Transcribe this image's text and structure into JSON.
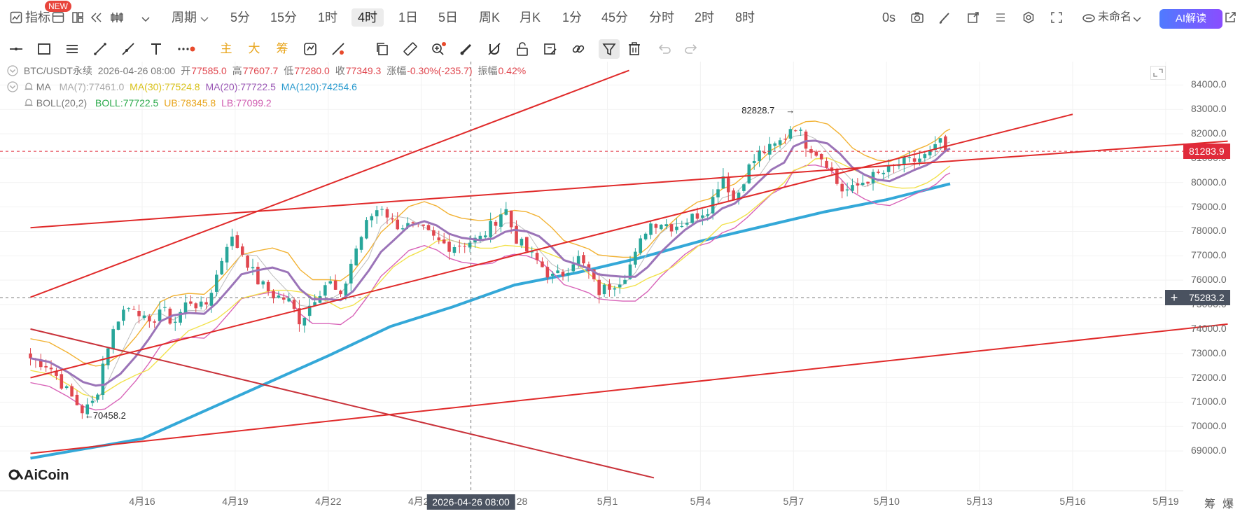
{
  "topbar": {
    "indicator_label": "指标",
    "new_badge": "NEW",
    "period_label": "周期",
    "intervals": [
      "5分",
      "15分",
      "1时",
      "4时",
      "1日",
      "5日",
      "周K",
      "月K",
      "1分",
      "45分",
      "分时",
      "2时",
      "8时"
    ],
    "active_interval": "4时",
    "countdown": "0s",
    "layout_name": "未命名",
    "ai_button": "AI解读"
  },
  "toolbar": {
    "main_label": "主",
    "big_label": "大",
    "chip_label": "筹"
  },
  "info": {
    "symbol": "BTC/USDT永续",
    "datetime": "2026-04-26 08:00",
    "open_label": "开",
    "open": "77585.0",
    "high_label": "高",
    "high": "77607.7",
    "low_label": "低",
    "low": "77280.0",
    "close_label": "收",
    "close": "77349.3",
    "change_label": "涨幅",
    "change": "-0.30%(-235.7)",
    "amp_label": "振幅",
    "amp": "0.42%",
    "ma_label": "MA",
    "ma7": "MA(7):77461.0",
    "ma30": "MA(30):77524.8",
    "ma20": "MA(20):77722.5",
    "ma120": "MA(120):74254.6",
    "boll_label": "BOLL(20,2)",
    "boll": "BOLL:77722.5",
    "ub": "UB:78345.8",
    "lb": "LB:77099.2"
  },
  "chart_data": {
    "type": "candlestick",
    "symbol": "BTC/USDT永续",
    "interval": "4时",
    "ylim": [
      68400,
      84500
    ],
    "y_ticks": [
      69000,
      70000,
      71000,
      72000,
      73000,
      74000,
      75000,
      76000,
      77000,
      78000,
      79000,
      80000,
      81000,
      82000,
      83000,
      84000
    ],
    "y_tick_labels": [
      "69000.0",
      "70000.0",
      "71000.0",
      "72000.0",
      "73000.0",
      "74000.0",
      "75000.0",
      "76000.0",
      "77000.0",
      "78000.0",
      "79000.0",
      "80000.0",
      "81000.0",
      "82000.0",
      "83000.0",
      "84000.0"
    ],
    "x_tick_labels": [
      "4月16",
      "4月19",
      "4月22",
      "4月25",
      "4月28",
      "5月1",
      "5月4",
      "5月7",
      "5月10",
      "5月13",
      "5月16",
      "5月19"
    ],
    "x_tick_positions": [
      0,
      3,
      6,
      9,
      12,
      15,
      18,
      21,
      24,
      27,
      30,
      33
    ],
    "first_candle_day": -3.6,
    "last_price": "81283.9",
    "last_price_value": 81283.9,
    "cursor_price": "75283.2",
    "cursor_price_value": 75283.2,
    "cursor_time": "2026-04-26 08:00",
    "cursor_day": 10.6,
    "high_marker": "82828.7",
    "high_value": 82828.7,
    "high_day": 21.0,
    "low_marker": "70458.2",
    "low_value": 70458.2,
    "low_day": -1.9,
    "anchors": [
      [
        -3.6,
        72800
      ],
      [
        -3.0,
        72500
      ],
      [
        -2.4,
        71400
      ],
      [
        -1.9,
        70600
      ],
      [
        -1.5,
        71100
      ],
      [
        -1.2,
        73000
      ],
      [
        -0.7,
        74700
      ],
      [
        -0.2,
        75000
      ],
      [
        0.2,
        74000
      ],
      [
        0.6,
        74900
      ],
      [
        1.0,
        74200
      ],
      [
        1.5,
        75200
      ],
      [
        2.0,
        74800
      ],
      [
        2.4,
        76200
      ],
      [
        2.8,
        77800
      ],
      [
        3.2,
        77200
      ],
      [
        3.7,
        76000
      ],
      [
        4.2,
        75400
      ],
      [
        4.7,
        75200
      ],
      [
        5.1,
        74300
      ],
      [
        5.5,
        75200
      ],
      [
        6.0,
        76000
      ],
      [
        6.4,
        75200
      ],
      [
        6.8,
        77000
      ],
      [
        7.3,
        78500
      ],
      [
        7.7,
        79100
      ],
      [
        8.1,
        78300
      ],
      [
        8.6,
        78200
      ],
      [
        9.1,
        78000
      ],
      [
        9.5,
        77600
      ],
      [
        9.9,
        77400
      ],
      [
        10.3,
        77500
      ],
      [
        10.9,
        77700
      ],
      [
        11.3,
        78300
      ],
      [
        11.7,
        79000
      ],
      [
        12.0,
        77800
      ],
      [
        12.4,
        77200
      ],
      [
        12.8,
        76700
      ],
      [
        13.2,
        76100
      ],
      [
        13.6,
        76300
      ],
      [
        14.0,
        77000
      ],
      [
        14.4,
        76300
      ],
      [
        14.7,
        75500
      ],
      [
        15.1,
        75800
      ],
      [
        15.5,
        76100
      ],
      [
        15.9,
        77000
      ],
      [
        16.3,
        78300
      ],
      [
        16.7,
        78400
      ],
      [
        17.1,
        78200
      ],
      [
        17.5,
        78400
      ],
      [
        17.9,
        78700
      ],
      [
        18.3,
        79000
      ],
      [
        18.7,
        80400
      ],
      [
        19.1,
        79200
      ],
      [
        19.5,
        80500
      ],
      [
        19.9,
        81200
      ],
      [
        20.3,
        81400
      ],
      [
        20.7,
        81800
      ],
      [
        21.0,
        82500
      ],
      [
        21.4,
        81600
      ],
      [
        21.7,
        81300
      ],
      [
        22.1,
        80800
      ],
      [
        22.5,
        79700
      ],
      [
        22.9,
        79700
      ],
      [
        23.3,
        80100
      ],
      [
        23.7,
        80300
      ],
      [
        24.1,
        80500
      ],
      [
        24.5,
        80800
      ],
      [
        24.9,
        80900
      ],
      [
        25.3,
        81100
      ],
      [
        25.6,
        81400
      ],
      [
        25.9,
        82300
      ],
      [
        26.05,
        81283.9
      ]
    ],
    "series": [
      {
        "name": "MA(7)",
        "color": "#bdbdbd",
        "offset": 0,
        "window": 2
      },
      {
        "name": "MA(30)",
        "color": "#f2e24d",
        "offset": -500,
        "window": 6
      },
      {
        "name": "MA(20)",
        "color": "#9b74b8",
        "offset": 0,
        "window": 4
      },
      {
        "name": "MA(120)",
        "color": "#34a8d8",
        "points": [
          [
            -3.6,
            68700
          ],
          [
            0,
            69500
          ],
          [
            3,
            71200
          ],
          [
            6,
            72900
          ],
          [
            8,
            74100
          ],
          [
            10,
            74900
          ],
          [
            12,
            75800
          ],
          [
            14,
            76300
          ],
          [
            16,
            76900
          ],
          [
            18,
            77600
          ],
          [
            20,
            78200
          ],
          [
            22,
            78800
          ],
          [
            24,
            79300
          ],
          [
            26.05,
            79950
          ]
        ]
      },
      {
        "name": "BOLL",
        "color": "#f2b233",
        "offset": 800,
        "window": 4
      },
      {
        "name": "LB",
        "color": "#d863b8",
        "offset": -1000,
        "window": 4
      }
    ],
    "trendlines": [
      {
        "from": [
          -3.6,
          75300
        ],
        "to": [
          15.7,
          84600
        ],
        "color": "#e02a2a"
      },
      {
        "from": [
          -3.6,
          78150
        ],
        "to": [
          35.0,
          81700
        ],
        "color": "#e02a2a"
      },
      {
        "from": [
          -3.6,
          72000
        ],
        "to": [
          30.0,
          82800
        ],
        "color": "#e02a2a"
      },
      {
        "from": [
          -3.6,
          74000
        ],
        "to": [
          16.5,
          67900
        ],
        "color": "#c9323a"
      },
      {
        "from": [
          -3.6,
          68900
        ],
        "to": [
          35.0,
          74200
        ],
        "color": "#e02a2a"
      }
    ],
    "up_color": "#28a69a",
    "down_color": "#e0474f"
  },
  "footer": {
    "logo": "AiCoin",
    "chip_label": "筹",
    "burst_label": "爆"
  }
}
